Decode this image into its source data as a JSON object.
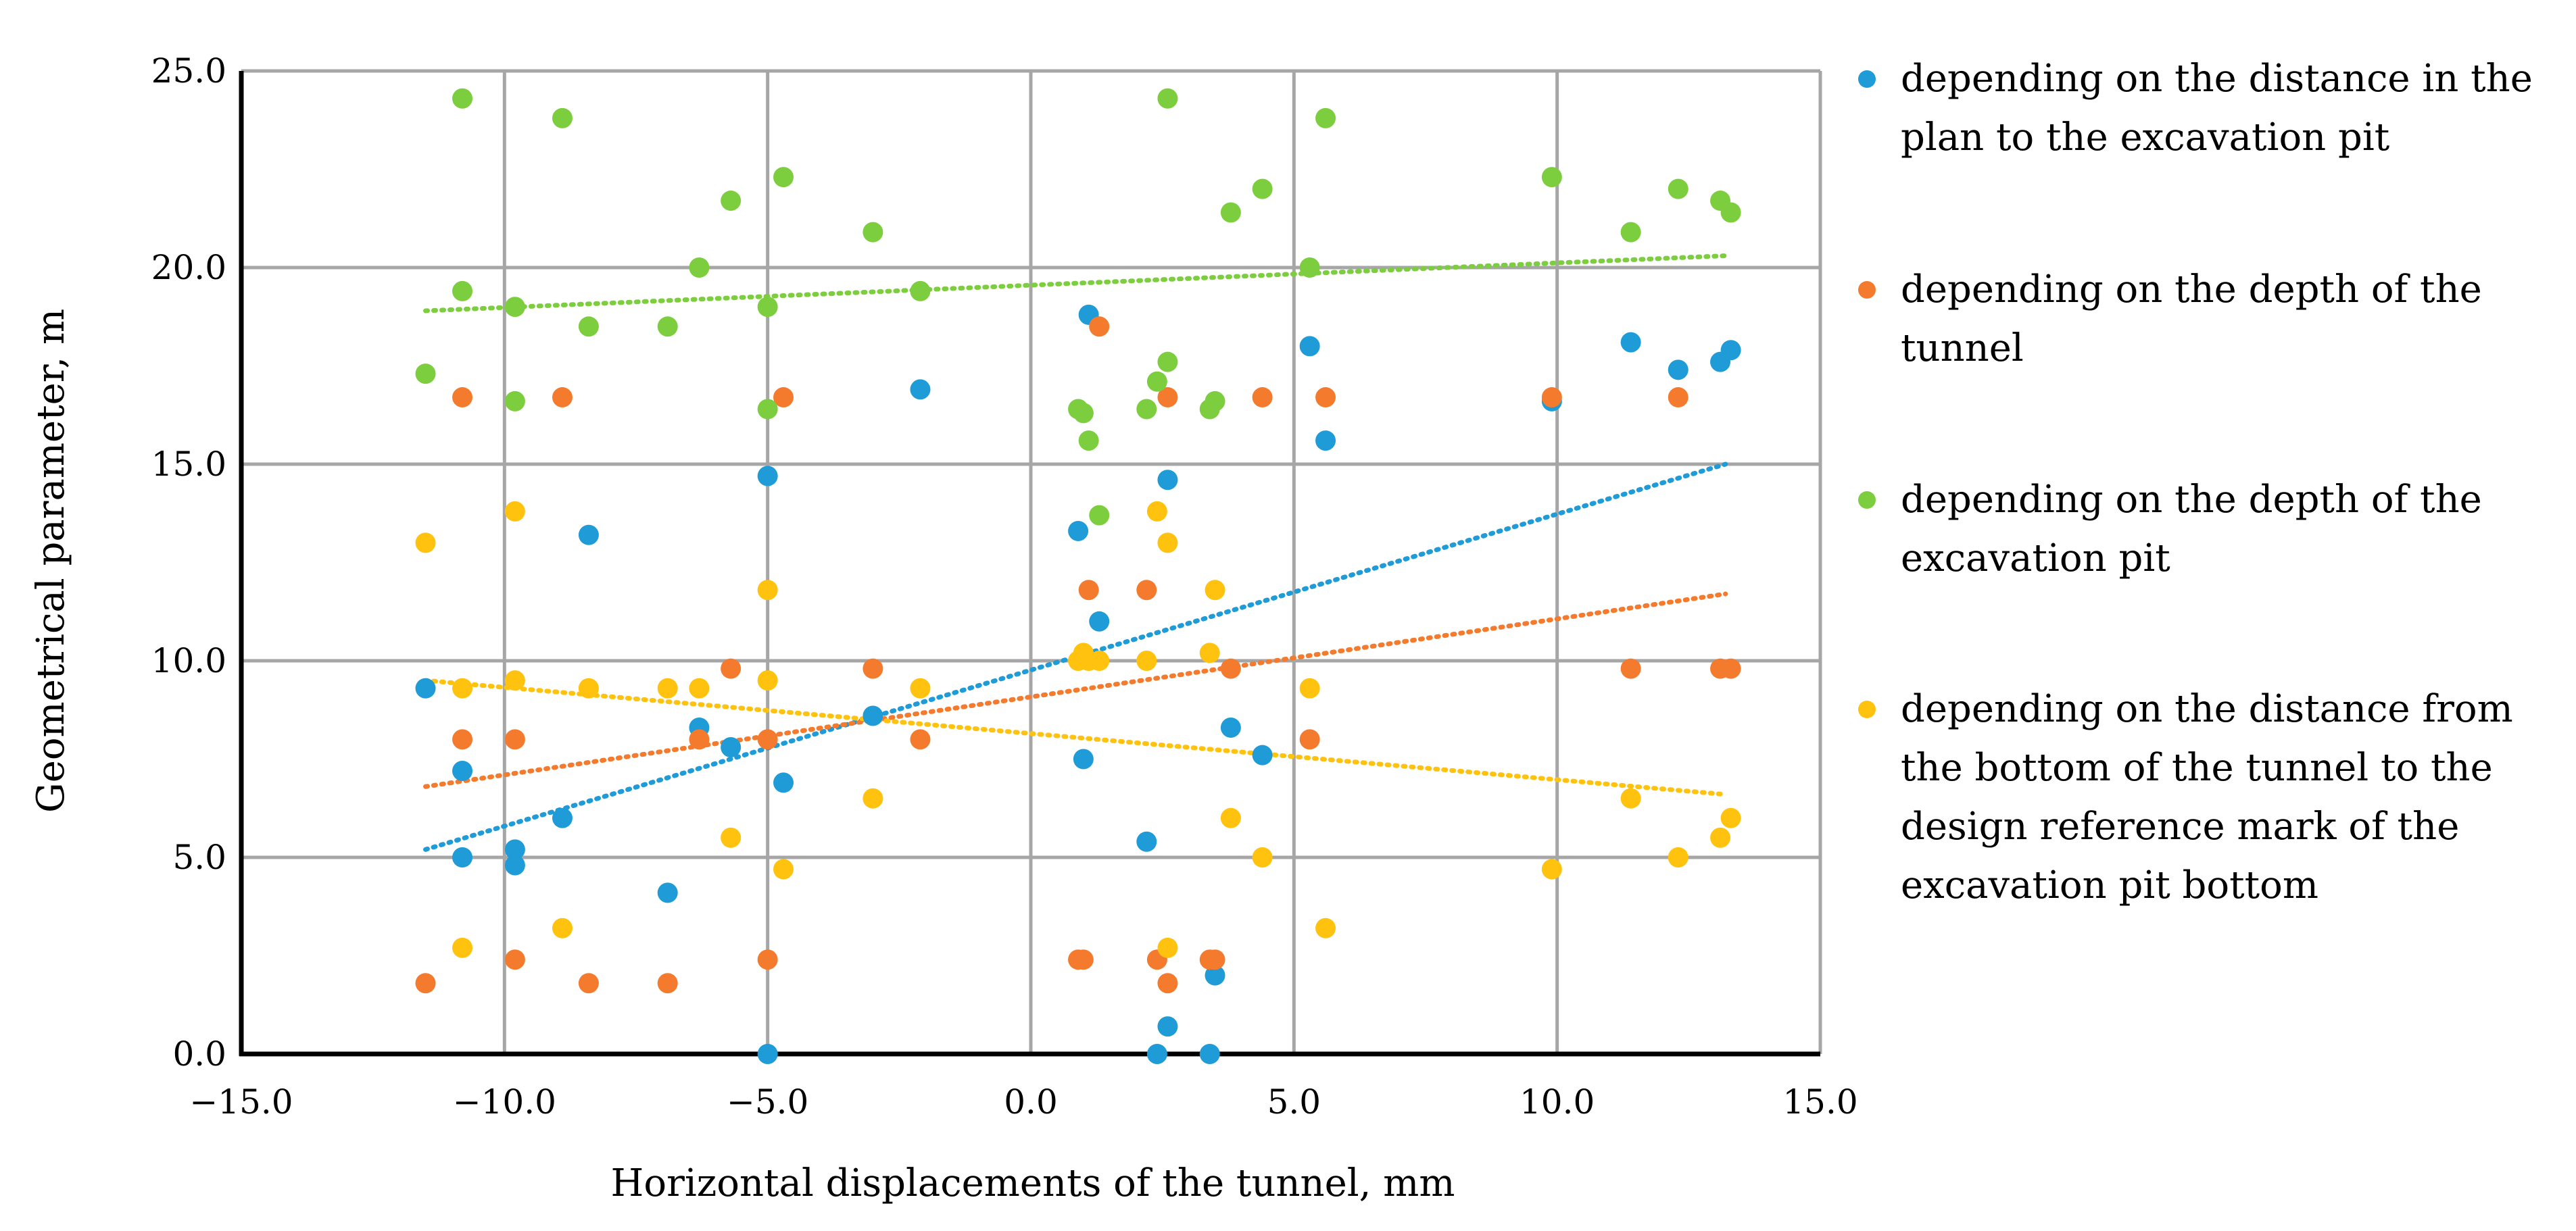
{
  "chart_data": {
    "type": "scatter",
    "title": "",
    "xlabel": "Horizontal displacements of the tunnel, mm",
    "ylabel": "Geometrical parameter, m",
    "xlim": [
      -15,
      15
    ],
    "ylim": [
      0,
      25
    ],
    "x_ticks": [
      -15,
      -10,
      -5,
      0,
      5,
      10,
      15
    ],
    "y_ticks": [
      0,
      5,
      10,
      15,
      20,
      25
    ],
    "x_tick_labels": [
      "−15.0",
      "−10.0",
      "−5.0",
      "0.0",
      "5.0",
      "10.0",
      "15.0"
    ],
    "y_tick_labels": [
      "0.0",
      "5.0",
      "10.0",
      "15.0",
      "20.0",
      "25.0"
    ],
    "grid": true,
    "legend_position": "right",
    "series": [
      {
        "name": "depending on the distance in the plan to the excavation pit",
        "legend_lines": [
          "depending on the distance in the",
          "plan to the excavation pit"
        ],
        "color": "#1F9BD7",
        "trendline": {
          "x": [
            -11.5,
            13.2
          ],
          "y": [
            5.2,
            15.0
          ]
        },
        "points": [
          [
            -11.5,
            9.3
          ],
          [
            -10.8,
            7.2
          ],
          [
            -10.8,
            5.0
          ],
          [
            -9.8,
            5.2
          ],
          [
            -9.8,
            4.8
          ],
          [
            -8.9,
            6.0
          ],
          [
            -8.4,
            13.2
          ],
          [
            -6.9,
            4.1
          ],
          [
            -6.3,
            8.3
          ],
          [
            -5.7,
            7.8
          ],
          [
            -5.0,
            14.7
          ],
          [
            -5.0,
            0.0
          ],
          [
            -4.7,
            6.9
          ],
          [
            -3.0,
            8.6
          ],
          [
            -2.1,
            16.9
          ],
          [
            0.9,
            13.3
          ],
          [
            1.0,
            7.5
          ],
          [
            1.1,
            18.8
          ],
          [
            1.3,
            11.0
          ],
          [
            2.2,
            5.4
          ],
          [
            2.4,
            0.0
          ],
          [
            2.6,
            0.7
          ],
          [
            2.6,
            14.6
          ],
          [
            3.4,
            0.0
          ],
          [
            3.5,
            2.0
          ],
          [
            3.8,
            8.3
          ],
          [
            4.4,
            7.6
          ],
          [
            5.3,
            18.0
          ],
          [
            5.6,
            15.6
          ],
          [
            9.9,
            16.6
          ],
          [
            11.4,
            18.1
          ],
          [
            12.3,
            17.4
          ],
          [
            13.1,
            17.6
          ],
          [
            13.3,
            17.9
          ]
        ]
      },
      {
        "name": "depending on the depth of the tunnel",
        "legend_lines": [
          "depending on the depth of the",
          "tunnel"
        ],
        "color": "#F47B2D",
        "trendline": {
          "x": [
            -11.5,
            13.2
          ],
          "y": [
            6.8,
            11.7
          ]
        },
        "points": [
          [
            -11.5,
            1.8
          ],
          [
            -10.8,
            16.7
          ],
          [
            -10.8,
            8.0
          ],
          [
            -9.8,
            8.0
          ],
          [
            -9.8,
            2.4
          ],
          [
            -8.9,
            16.7
          ],
          [
            -8.4,
            1.8
          ],
          [
            -6.9,
            1.8
          ],
          [
            -6.3,
            8.0
          ],
          [
            -5.7,
            9.8
          ],
          [
            -5.0,
            8.0
          ],
          [
            -5.0,
            2.4
          ],
          [
            -4.7,
            16.7
          ],
          [
            -3.0,
            9.8
          ],
          [
            -2.1,
            8.0
          ],
          [
            0.9,
            2.4
          ],
          [
            1.0,
            2.4
          ],
          [
            1.1,
            11.8
          ],
          [
            1.3,
            18.5
          ],
          [
            2.2,
            11.8
          ],
          [
            2.4,
            2.4
          ],
          [
            2.6,
            16.7
          ],
          [
            2.6,
            1.8
          ],
          [
            3.4,
            2.4
          ],
          [
            3.5,
            2.4
          ],
          [
            3.8,
            9.8
          ],
          [
            4.4,
            16.7
          ],
          [
            5.3,
            8.0
          ],
          [
            5.6,
            16.7
          ],
          [
            9.9,
            16.7
          ],
          [
            11.4,
            9.8
          ],
          [
            12.3,
            16.7
          ],
          [
            13.1,
            9.8
          ],
          [
            13.3,
            9.8
          ]
        ]
      },
      {
        "name": "depending on the depth of the excavation pit",
        "legend_lines": [
          "depending on the depth of the",
          "excavation pit"
        ],
        "color": "#7DCE3F",
        "trendline": {
          "x": [
            -11.5,
            13.2
          ],
          "y": [
            18.9,
            20.3
          ]
        },
        "points": [
          [
            -11.5,
            17.3
          ],
          [
            -10.8,
            24.3
          ],
          [
            -10.8,
            19.4
          ],
          [
            -9.8,
            19.0
          ],
          [
            -9.8,
            16.6
          ],
          [
            -8.9,
            23.8
          ],
          [
            -8.4,
            18.5
          ],
          [
            -6.9,
            18.5
          ],
          [
            -6.3,
            20.0
          ],
          [
            -5.7,
            21.7
          ],
          [
            -5.0,
            19.0
          ],
          [
            -5.0,
            16.4
          ],
          [
            -4.7,
            22.3
          ],
          [
            -3.0,
            20.9
          ],
          [
            -2.1,
            19.4
          ],
          [
            0.9,
            16.4
          ],
          [
            1.0,
            16.3
          ],
          [
            1.1,
            15.6
          ],
          [
            1.3,
            13.7
          ],
          [
            2.2,
            16.4
          ],
          [
            2.4,
            17.1
          ],
          [
            2.6,
            24.3
          ],
          [
            2.6,
            17.6
          ],
          [
            3.4,
            16.4
          ],
          [
            3.5,
            16.6
          ],
          [
            3.8,
            21.4
          ],
          [
            4.4,
            22.0
          ],
          [
            5.3,
            20.0
          ],
          [
            5.6,
            23.8
          ],
          [
            9.9,
            22.3
          ],
          [
            11.4,
            20.9
          ],
          [
            12.3,
            22.0
          ],
          [
            13.1,
            21.7
          ],
          [
            13.3,
            21.4
          ]
        ]
      },
      {
        "name": "depending on the distance from the bottom of the tunnel to the design reference mark of the excavation pit bottom",
        "legend_lines": [
          "depending on the distance from",
          "the bottom of the tunnel to the",
          "design reference mark of the",
          "excavation pit bottom"
        ],
        "color": "#FFC20E",
        "trendline": {
          "x": [
            -11.5,
            13.2
          ],
          "y": [
            9.5,
            6.6
          ]
        },
        "points": [
          [
            -11.5,
            13.0
          ],
          [
            -10.8,
            9.3
          ],
          [
            -10.8,
            2.7
          ],
          [
            -9.8,
            9.5
          ],
          [
            -9.8,
            13.8
          ],
          [
            -8.9,
            3.2
          ],
          [
            -8.4,
            9.3
          ],
          [
            -6.9,
            9.3
          ],
          [
            -6.3,
            9.3
          ],
          [
            -5.7,
            5.5
          ],
          [
            -5.0,
            11.8
          ],
          [
            -5.0,
            9.5
          ],
          [
            -4.7,
            4.7
          ],
          [
            -3.0,
            6.5
          ],
          [
            -2.1,
            9.3
          ],
          [
            0.9,
            10.0
          ],
          [
            1.0,
            10.2
          ],
          [
            1.1,
            10.0
          ],
          [
            1.3,
            10.0
          ],
          [
            2.2,
            10.0
          ],
          [
            2.4,
            13.8
          ],
          [
            2.6,
            13.0
          ],
          [
            2.6,
            2.7
          ],
          [
            3.4,
            10.2
          ],
          [
            3.5,
            11.8
          ],
          [
            3.8,
            6.0
          ],
          [
            4.4,
            5.0
          ],
          [
            5.3,
            9.3
          ],
          [
            5.6,
            3.2
          ],
          [
            9.9,
            4.7
          ],
          [
            11.4,
            6.5
          ],
          [
            12.3,
            5.0
          ],
          [
            13.1,
            5.5
          ],
          [
            13.3,
            6.0
          ]
        ]
      }
    ]
  }
}
